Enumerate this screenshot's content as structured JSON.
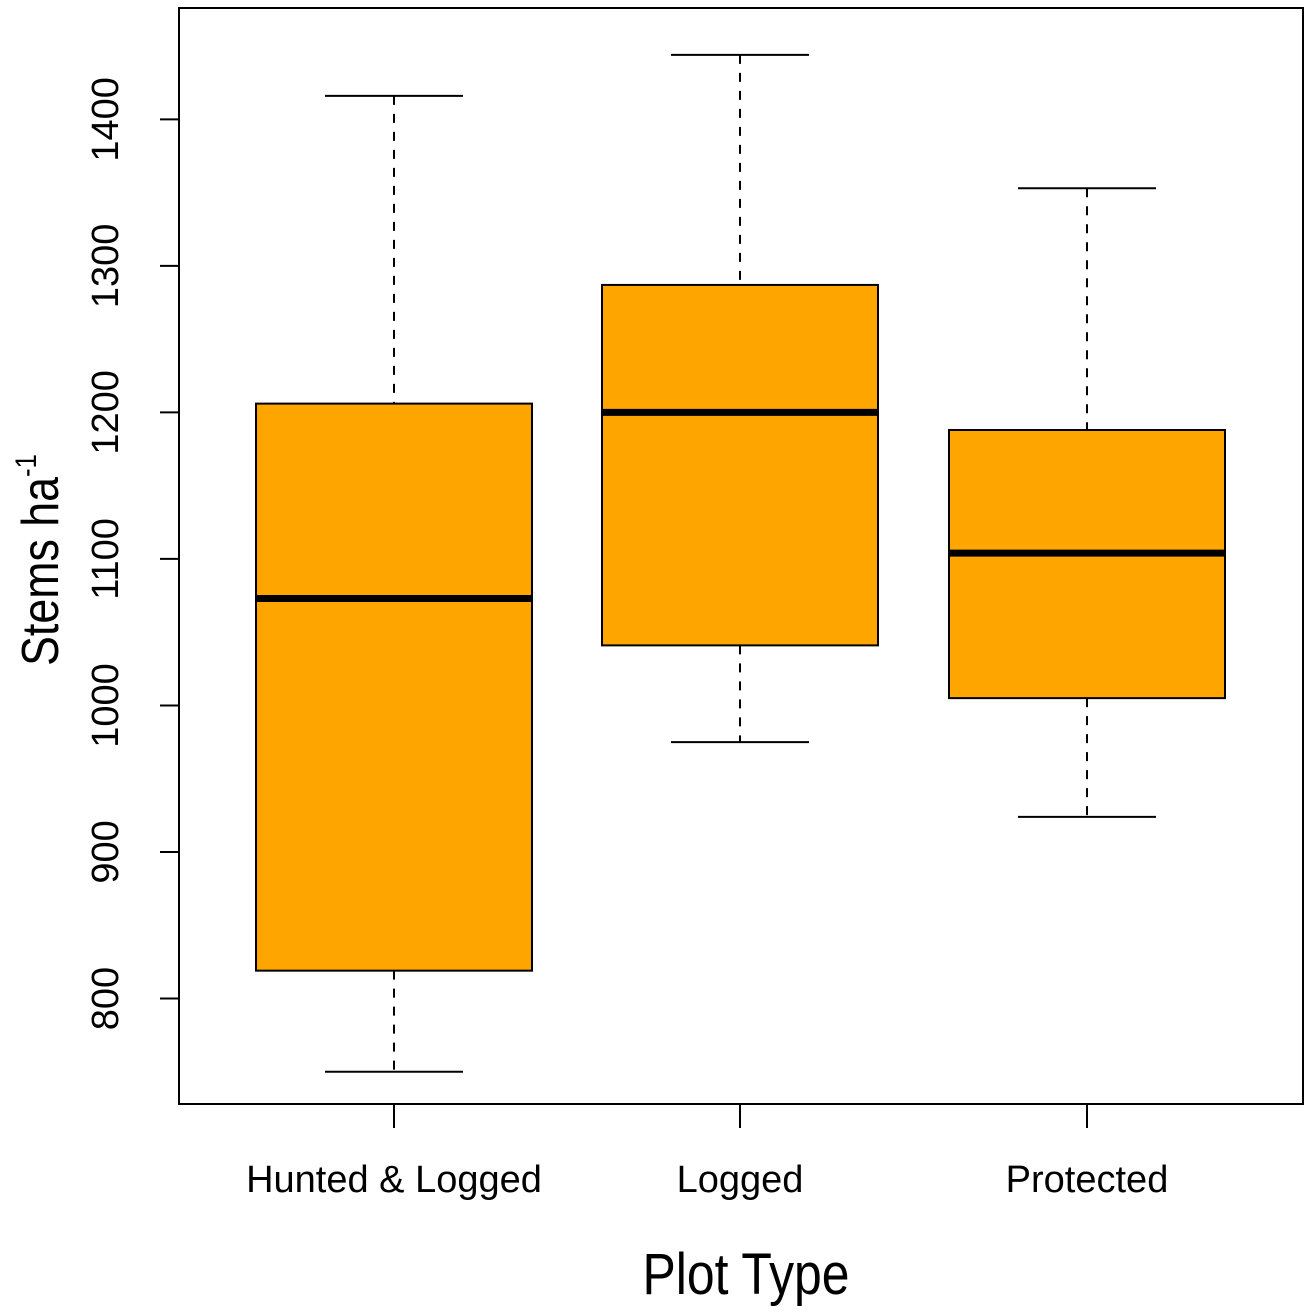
{
  "chart_data": {
    "type": "boxplot",
    "title": "",
    "xlabel": "Plot Type",
    "ylabel": "Stems ha",
    "ylabel_superscript": "-1",
    "categories": [
      "Hunted & Logged",
      "Logged",
      "Protected"
    ],
    "boxes": [
      {
        "category": "Hunted & Logged",
        "whisker_low": 750,
        "q1": 819,
        "median": 1073,
        "q3": 1206,
        "whisker_high": 1416
      },
      {
        "category": "Logged",
        "whisker_low": 975,
        "q1": 1041,
        "median": 1200,
        "q3": 1287,
        "whisker_high": 1444
      },
      {
        "category": "Protected",
        "whisker_low": 924,
        "q1": 1005,
        "median": 1104,
        "q3": 1188,
        "whisker_high": 1353
      }
    ],
    "ylim": [
      728,
      1476
    ],
    "yticks": [
      800,
      900,
      1000,
      1100,
      1200,
      1300,
      1400
    ],
    "grid": false,
    "colors": {
      "box_fill": "#FFA500",
      "stroke": "#000000"
    }
  }
}
